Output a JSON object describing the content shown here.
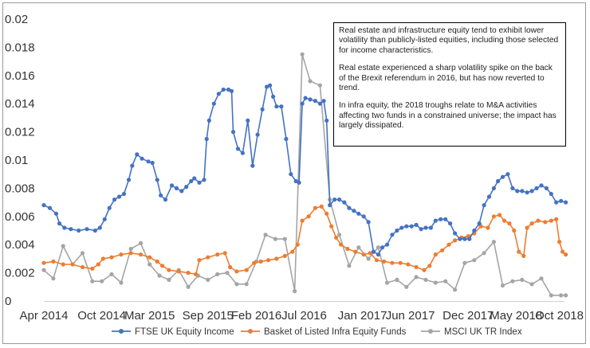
{
  "chart_data": {
    "type": "line",
    "title": "",
    "xlabel": "",
    "ylabel": "",
    "ylim": [
      0,
      0.02
    ],
    "yticks": [
      "0",
      "0.002",
      "0.004",
      "0.006",
      "0.008",
      "0.01",
      "0.012",
      "0.014",
      "0.016",
      "0.018",
      "0.02"
    ],
    "xlim": [
      "2014-04",
      "2018-10"
    ],
    "xticks": [
      {
        "label": "Apr 2014",
        "x": "2014-04"
      },
      {
        "label": "Oct 2014",
        "x": "2014-10"
      },
      {
        "label": "Mar 2015",
        "x": "2015-03"
      },
      {
        "label": "Sep 2015",
        "x": "2015-09"
      },
      {
        "label": "Feb 2016",
        "x": "2016-02"
      },
      {
        "label": "Jul 2016",
        "x": "2016-07"
      },
      {
        "label": "Jan 2017",
        "x": "2017-01"
      },
      {
        "label": "Jun 2017",
        "x": "2017-06"
      },
      {
        "label": "Dec 2017",
        "x": "2017-12"
      },
      {
        "label": "May 2018",
        "x": "2018-05"
      },
      {
        "label": "Oct 2018",
        "x": "2018-10"
      }
    ],
    "grid": false,
    "legend": "bottom",
    "series": [
      {
        "name": "FTSE UK Equity Income",
        "color": "#4472c4",
        "marker": "circle",
        "points": [
          [
            "2014-04-01",
            0.0068
          ],
          [
            "2014-04-20",
            0.0066
          ],
          [
            "2014-05-10",
            0.0062
          ],
          [
            "2014-05-20",
            0.0055
          ],
          [
            "2014-06-05",
            0.0052
          ],
          [
            "2014-06-25",
            0.0051
          ],
          [
            "2014-07-20",
            0.005
          ],
          [
            "2014-08-15",
            0.0051
          ],
          [
            "2014-09-10",
            0.005
          ],
          [
            "2014-09-25",
            0.0052
          ],
          [
            "2014-10-10",
            0.0058
          ],
          [
            "2014-10-25",
            0.0066
          ],
          [
            "2014-11-10",
            0.0072
          ],
          [
            "2014-11-25",
            0.0074
          ],
          [
            "2014-12-10",
            0.0076
          ],
          [
            "2014-12-25",
            0.0086
          ],
          [
            "2015-01-05",
            0.0096
          ],
          [
            "2015-01-20",
            0.0104
          ],
          [
            "2015-02-05",
            0.0101
          ],
          [
            "2015-02-25",
            0.0099
          ],
          [
            "2015-03-10",
            0.0098
          ],
          [
            "2015-03-25",
            0.0086
          ],
          [
            "2015-04-05",
            0.0075
          ],
          [
            "2015-04-20",
            0.0072
          ],
          [
            "2015-05-10",
            0.0082
          ],
          [
            "2015-05-25",
            0.008
          ],
          [
            "2015-06-10",
            0.0078
          ],
          [
            "2015-06-25",
            0.0081
          ],
          [
            "2015-07-10",
            0.0085
          ],
          [
            "2015-07-20",
            0.0087
          ],
          [
            "2015-08-05",
            0.0084
          ],
          [
            "2015-08-20",
            0.0086
          ],
          [
            "2015-08-28",
            0.0115
          ],
          [
            "2015-09-05",
            0.0128
          ],
          [
            "2015-09-20",
            0.014
          ],
          [
            "2015-10-05",
            0.0147
          ],
          [
            "2015-10-20",
            0.015
          ],
          [
            "2015-11-05",
            0.015
          ],
          [
            "2015-11-15",
            0.0149
          ],
          [
            "2015-11-20",
            0.012
          ],
          [
            "2015-12-05",
            0.0108
          ],
          [
            "2015-12-20",
            0.0105
          ],
          [
            "2016-01-05",
            0.0128
          ],
          [
            "2016-01-20",
            0.0096
          ],
          [
            "2016-02-05",
            0.0118
          ],
          [
            "2016-02-20",
            0.0136
          ],
          [
            "2016-03-05",
            0.0152
          ],
          [
            "2016-03-15",
            0.0153
          ],
          [
            "2016-03-25",
            0.0145
          ],
          [
            "2016-04-05",
            0.0138
          ],
          [
            "2016-04-20",
            0.0138
          ],
          [
            "2016-05-05",
            0.0115
          ],
          [
            "2016-05-20",
            0.009
          ],
          [
            "2016-06-05",
            0.0085
          ],
          [
            "2016-06-15",
            0.0084
          ],
          [
            "2016-06-25",
            0.014
          ],
          [
            "2016-07-05",
            0.0144
          ],
          [
            "2016-07-20",
            0.0143
          ],
          [
            "2016-08-05",
            0.0142
          ],
          [
            "2016-08-20",
            0.014
          ],
          [
            "2016-09-01",
            0.0142
          ],
          [
            "2016-09-10",
            0.0128
          ],
          [
            "2016-09-20",
            0.0068
          ],
          [
            "2016-10-05",
            0.0072
          ],
          [
            "2016-10-20",
            0.0072
          ],
          [
            "2016-11-05",
            0.007
          ],
          [
            "2016-11-20",
            0.0066
          ],
          [
            "2016-12-05",
            0.0064
          ],
          [
            "2016-12-20",
            0.0062
          ],
          [
            "2017-01-05",
            0.006
          ],
          [
            "2017-01-20",
            0.0056
          ],
          [
            "2017-02-05",
            0.0035
          ],
          [
            "2017-02-20",
            0.0033
          ],
          [
            "2017-03-05",
            0.0038
          ],
          [
            "2017-03-20",
            0.004
          ],
          [
            "2017-04-05",
            0.0047
          ],
          [
            "2017-04-20",
            0.005
          ],
          [
            "2017-05-05",
            0.0052
          ],
          [
            "2017-05-20",
            0.0053
          ],
          [
            "2017-06-05",
            0.0053
          ],
          [
            "2017-06-20",
            0.0054
          ],
          [
            "2017-07-05",
            0.0051
          ],
          [
            "2017-07-20",
            0.0052
          ],
          [
            "2017-08-05",
            0.0052
          ],
          [
            "2017-08-20",
            0.0057
          ],
          [
            "2017-09-05",
            0.0058
          ],
          [
            "2017-09-20",
            0.0058
          ],
          [
            "2017-10-05",
            0.0055
          ],
          [
            "2017-10-20",
            0.0048
          ],
          [
            "2017-11-05",
            0.0044
          ],
          [
            "2017-11-20",
            0.0044
          ],
          [
            "2017-12-05",
            0.0044
          ],
          [
            "2017-12-20",
            0.005
          ],
          [
            "2018-01-05",
            0.0055
          ],
          [
            "2018-01-20",
            0.0068
          ],
          [
            "2018-02-05",
            0.0074
          ],
          [
            "2018-02-20",
            0.008
          ],
          [
            "2018-03-05",
            0.0085
          ],
          [
            "2018-03-20",
            0.0088
          ],
          [
            "2018-04-05",
            0.009
          ],
          [
            "2018-04-20",
            0.008
          ],
          [
            "2018-05-05",
            0.0078
          ],
          [
            "2018-05-20",
            0.0078
          ],
          [
            "2018-06-05",
            0.0077
          ],
          [
            "2018-06-20",
            0.0078
          ],
          [
            "2018-07-05",
            0.008
          ],
          [
            "2018-07-20",
            0.0082
          ],
          [
            "2018-08-05",
            0.008
          ],
          [
            "2018-08-20",
            0.0076
          ],
          [
            "2018-09-05",
            0.007
          ],
          [
            "2018-09-20",
            0.0071
          ],
          [
            "2018-10-05",
            0.007
          ]
        ]
      },
      {
        "name": "Basket of Listed Infra Equity Funds",
        "color": "#ed7d31",
        "marker": "circle",
        "points": [
          [
            "2014-04-01",
            0.0027
          ],
          [
            "2014-05-01",
            0.0028
          ],
          [
            "2014-06-01",
            0.0026
          ],
          [
            "2014-07-01",
            0.0026
          ],
          [
            "2014-08-01",
            0.0024
          ],
          [
            "2014-09-01",
            0.0023
          ],
          [
            "2014-09-20",
            0.0026
          ],
          [
            "2014-10-05",
            0.003
          ],
          [
            "2014-11-01",
            0.0031
          ],
          [
            "2014-12-01",
            0.0033
          ],
          [
            "2015-01-01",
            0.0034
          ],
          [
            "2015-02-01",
            0.0033
          ],
          [
            "2015-03-01",
            0.0031
          ],
          [
            "2015-03-25",
            0.0028
          ],
          [
            "2015-04-10",
            0.0025
          ],
          [
            "2015-05-01",
            0.0022
          ],
          [
            "2015-06-01",
            0.0021
          ],
          [
            "2015-07-01",
            0.002
          ],
          [
            "2015-07-25",
            0.0019
          ],
          [
            "2015-08-05",
            0.0029
          ],
          [
            "2015-09-01",
            0.0031
          ],
          [
            "2015-10-01",
            0.0033
          ],
          [
            "2015-10-25",
            0.0034
          ],
          [
            "2015-11-10",
            0.0024
          ],
          [
            "2015-12-01",
            0.0021
          ],
          [
            "2016-01-01",
            0.0022
          ],
          [
            "2016-01-25",
            0.0027
          ],
          [
            "2016-02-15",
            0.0028
          ],
          [
            "2016-03-10",
            0.0029
          ],
          [
            "2016-04-05",
            0.003
          ],
          [
            "2016-05-01",
            0.0032
          ],
          [
            "2016-05-25",
            0.0035
          ],
          [
            "2016-06-10",
            0.004
          ],
          [
            "2016-06-25",
            0.0057
          ],
          [
            "2016-07-15",
            0.006
          ],
          [
            "2016-08-05",
            0.0066
          ],
          [
            "2016-08-25",
            0.0067
          ],
          [
            "2016-09-10",
            0.0062
          ],
          [
            "2016-09-25",
            0.0053
          ],
          [
            "2016-10-10",
            0.0045
          ],
          [
            "2016-10-25",
            0.004
          ],
          [
            "2016-11-15",
            0.0037
          ],
          [
            "2016-12-10",
            0.0035
          ],
          [
            "2017-01-05",
            0.0033
          ],
          [
            "2017-01-25",
            0.0034
          ],
          [
            "2017-02-15",
            0.0029
          ],
          [
            "2017-03-10",
            0.0028
          ],
          [
            "2017-04-05",
            0.0027
          ],
          [
            "2017-05-01",
            0.0027
          ],
          [
            "2017-05-25",
            0.0026
          ],
          [
            "2017-06-20",
            0.0024
          ],
          [
            "2017-07-15",
            0.0022
          ],
          [
            "2017-08-01",
            0.0025
          ],
          [
            "2017-08-20",
            0.0033
          ],
          [
            "2017-09-10",
            0.0036
          ],
          [
            "2017-10-01",
            0.004
          ],
          [
            "2017-10-20",
            0.0043
          ],
          [
            "2017-11-10",
            0.0045
          ],
          [
            "2017-12-01",
            0.0046
          ],
          [
            "2017-12-20",
            0.0048
          ],
          [
            "2018-01-10",
            0.0053
          ],
          [
            "2018-02-01",
            0.0052
          ],
          [
            "2018-02-20",
            0.006
          ],
          [
            "2018-03-10",
            0.0061
          ],
          [
            "2018-03-25",
            0.0057
          ],
          [
            "2018-04-10",
            0.0055
          ],
          [
            "2018-04-25",
            0.005
          ],
          [
            "2018-05-10",
            0.0035
          ],
          [
            "2018-05-25",
            0.0032
          ],
          [
            "2018-06-05",
            0.0052
          ],
          [
            "2018-06-20",
            0.0055
          ],
          [
            "2018-07-10",
            0.0057
          ],
          [
            "2018-08-01",
            0.0056
          ],
          [
            "2018-08-20",
            0.0057
          ],
          [
            "2018-09-05",
            0.0058
          ],
          [
            "2018-09-15",
            0.0042
          ],
          [
            "2018-09-25",
            0.0035
          ],
          [
            "2018-10-05",
            0.0033
          ]
        ]
      },
      {
        "name": "MSCI UK TR Index",
        "color": "#a5a5a5",
        "marker": "circle",
        "points": [
          [
            "2014-04-01",
            0.0022
          ],
          [
            "2014-05-01",
            0.0016
          ],
          [
            "2014-06-01",
            0.0039
          ],
          [
            "2014-07-01",
            0.0026
          ],
          [
            "2014-08-01",
            0.0034
          ],
          [
            "2014-09-01",
            0.0014
          ],
          [
            "2014-10-01",
            0.0014
          ],
          [
            "2014-11-01",
            0.0019
          ],
          [
            "2014-12-01",
            0.0013
          ],
          [
            "2015-01-01",
            0.0037
          ],
          [
            "2015-02-01",
            0.0041
          ],
          [
            "2015-03-01",
            0.0026
          ],
          [
            "2015-04-01",
            0.0018
          ],
          [
            "2015-05-01",
            0.0015
          ],
          [
            "2015-06-01",
            0.0022
          ],
          [
            "2015-07-01",
            0.001
          ],
          [
            "2015-08-01",
            0.0018
          ],
          [
            "2015-09-01",
            0.0015
          ],
          [
            "2015-10-01",
            0.0019
          ],
          [
            "2015-11-01",
            0.002
          ],
          [
            "2015-12-01",
            0.0012
          ],
          [
            "2016-01-01",
            0.0012
          ],
          [
            "2016-02-01",
            0.0028
          ],
          [
            "2016-03-01",
            0.0047
          ],
          [
            "2016-04-01",
            0.0044
          ],
          [
            "2016-05-01",
            0.0044
          ],
          [
            "2016-06-01",
            0.0007
          ],
          [
            "2016-06-25",
            0.0175
          ],
          [
            "2016-07-20",
            0.0156
          ],
          [
            "2016-08-20",
            0.0153
          ],
          [
            "2016-09-20",
            0.0072
          ],
          [
            "2016-10-20",
            0.0047
          ],
          [
            "2016-11-20",
            0.0025
          ],
          [
            "2016-12-20",
            0.0038
          ],
          [
            "2017-01-20",
            0.003
          ],
          [
            "2017-02-20",
            0.0038
          ],
          [
            "2017-03-20",
            0.0013
          ],
          [
            "2017-04-20",
            0.0015
          ],
          [
            "2017-05-20",
            0.001
          ],
          [
            "2017-06-20",
            0.0017
          ],
          [
            "2017-07-20",
            0.0015
          ],
          [
            "2017-08-20",
            0.0013
          ],
          [
            "2017-09-20",
            0.0014
          ],
          [
            "2017-10-20",
            0.0008
          ],
          [
            "2017-11-20",
            0.0027
          ],
          [
            "2017-12-20",
            0.0029
          ],
          [
            "2018-01-20",
            0.0034
          ],
          [
            "2018-02-20",
            0.0042
          ],
          [
            "2018-03-20",
            0.0011
          ],
          [
            "2018-04-20",
            0.0014
          ],
          [
            "2018-05-20",
            0.0015
          ],
          [
            "2018-06-20",
            0.0012
          ],
          [
            "2018-07-20",
            0.0016
          ],
          [
            "2018-08-20",
            0.0004
          ],
          [
            "2018-09-20",
            0.0004
          ],
          [
            "2018-10-05",
            0.0004
          ]
        ]
      }
    ]
  },
  "annotation": {
    "paragraphs": [
      "Real estate and infrastructure equity tend to exhibit lower volatility than publicly-listed equities, including those selected for income characteristics.",
      "Real estate experienced a sharp volatility spike on the back of the Brexit referendum in 2016, but has now reverted to trend.",
      "In infra equity, the 2018 troughs relate to M&A activities affecting two funds in a constrained universe; the impact has largely dissipated."
    ]
  }
}
